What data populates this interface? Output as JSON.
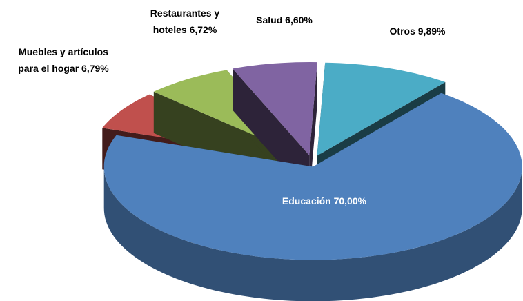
{
  "chart_data": {
    "type": "pie3d",
    "categories": [
      "Otros",
      "Educación",
      "Muebles y artículos para el hogar",
      "Restaurantes y hoteles",
      "Salud"
    ],
    "values": [
      9.89,
      70.0,
      6.79,
      6.72,
      6.6
    ],
    "value_labels": [
      "9,89%",
      "70,00%",
      "6,79%",
      "6,72%",
      "6,60%"
    ],
    "colors": [
      "#4bacc6",
      "#4f81bd",
      "#c0504d",
      "#9bbb59",
      "#8064a2"
    ]
  }
}
